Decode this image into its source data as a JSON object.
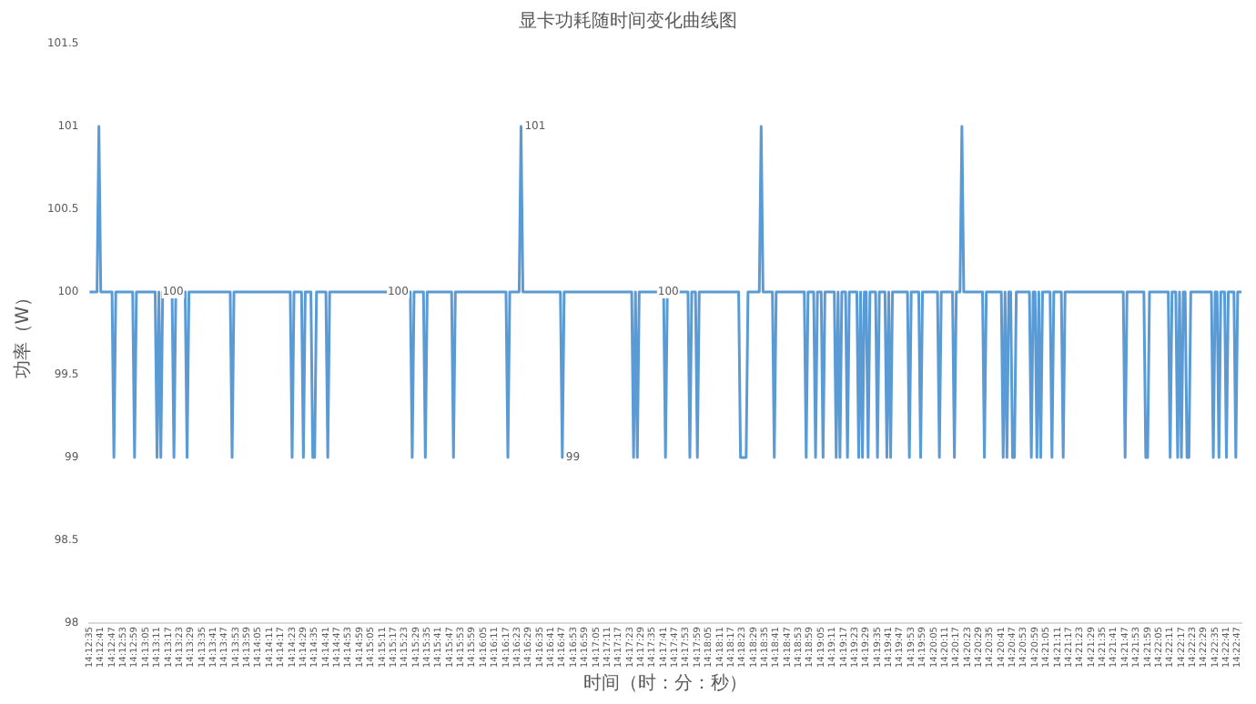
{
  "chart_data": {
    "type": "line",
    "title": "显卡功耗随时间变化曲线图",
    "xlabel": "时间（时：分：秒）",
    "ylabel": "功率（W）",
    "categories": [
      "14:12:35",
      null,
      null,
      null,
      null,
      null,
      "14:12:41",
      null,
      null,
      null,
      null,
      null,
      "14:12:47",
      null,
      null,
      null,
      null,
      null,
      "14:12:53",
      null,
      null,
      null,
      null,
      null,
      "14:12:59",
      null,
      null,
      null,
      null,
      null,
      "14:13:05",
      null,
      null,
      null,
      null,
      null,
      "14:13:11",
      null,
      null,
      null,
      null,
      null,
      "14:13:17",
      null,
      null,
      null,
      null,
      null,
      "14:13:23",
      null,
      null,
      null,
      null,
      null,
      "14:13:29",
      null,
      null,
      null,
      null,
      null,
      "14:13:35",
      null,
      null,
      null,
      null,
      null,
      "14:13:41",
      null,
      null,
      null,
      null,
      null,
      "14:13:47",
      null,
      null,
      null,
      null,
      null,
      "14:13:53",
      null,
      null,
      null,
      null,
      null,
      "14:13:59",
      null,
      null,
      null,
      null,
      null,
      "14:14:05",
      null,
      null,
      null,
      null,
      null,
      "14:14:11",
      null,
      null,
      null,
      null,
      null,
      "14:14:17",
      null,
      null,
      null,
      null,
      null,
      "14:14:23",
      null,
      null,
      null,
      null,
      null,
      "14:14:29",
      null,
      null,
      null,
      null,
      null,
      "14:14:35",
      null,
      null,
      null,
      null,
      null,
      "14:14:41",
      null,
      null,
      null,
      null,
      null,
      "14:14:47",
      null,
      null,
      null,
      null,
      null,
      "14:14:53",
      null,
      null,
      null,
      null,
      null,
      "14:14:59",
      null,
      null,
      null,
      null,
      null,
      "14:15:05",
      null,
      null,
      null,
      null,
      null,
      "14:15:11",
      null,
      null,
      null,
      null,
      null,
      "14:15:17",
      null,
      null,
      null,
      null,
      null,
      "14:15:23",
      null,
      null,
      null,
      null,
      null,
      "14:15:29",
      null,
      null,
      null,
      null,
      null,
      "14:15:35",
      null,
      null,
      null,
      null,
      null,
      "14:15:41",
      null,
      null,
      null,
      null,
      null,
      "14:15:47",
      null,
      null,
      null,
      null,
      null,
      "14:15:53",
      null,
      null,
      null,
      null,
      null,
      "14:15:59",
      null,
      null,
      null,
      null,
      null,
      "14:16:05",
      null,
      null,
      null,
      null,
      null,
      "14:16:11",
      null,
      null,
      null,
      null,
      null,
      "14:16:17",
      null,
      null,
      null,
      null,
      null,
      "14:16:23",
      null,
      null,
      null,
      null,
      null,
      "14:16:29",
      null,
      null,
      null,
      null,
      null,
      "14:16:35",
      null,
      null,
      null,
      null,
      null,
      "14:16:41",
      null,
      null,
      null,
      null,
      null,
      "14:16:47",
      null,
      null,
      null,
      null,
      null,
      "14:16:53",
      null,
      null,
      null,
      null,
      null,
      "14:16:59",
      null,
      null,
      null,
      null,
      null,
      "14:17:05",
      null,
      null,
      null,
      null,
      null,
      "14:17:11",
      null,
      null,
      null,
      null,
      null,
      "14:17:17",
      null,
      null,
      null,
      null,
      null,
      "14:17:23",
      null,
      null,
      null,
      null,
      null,
      "14:17:29",
      null,
      null,
      null,
      null,
      null,
      "14:17:35",
      null,
      null,
      null,
      null,
      null,
      "14:17:41",
      null,
      null,
      null,
      null,
      null,
      "14:17:47",
      null,
      null,
      null,
      null,
      null,
      "14:17:53",
      null,
      null,
      null,
      null,
      null,
      "14:17:59",
      null,
      null,
      null,
      null,
      null,
      "14:18:05",
      null,
      null,
      null,
      null,
      null,
      "14:18:11",
      null,
      null,
      null,
      null,
      null,
      "14:18:17",
      null,
      null,
      null,
      null,
      null,
      "14:18:23",
      null,
      null,
      null,
      null,
      null,
      "14:18:29",
      null,
      null,
      null,
      null,
      null,
      "14:18:35",
      null,
      null,
      null,
      null,
      null,
      "14:18:41",
      null,
      null,
      null,
      null,
      null,
      "14:18:47",
      null,
      null,
      null,
      null,
      null,
      "14:18:53",
      null,
      null,
      null,
      null,
      null,
      "14:18:59",
      null,
      null,
      null,
      null,
      null,
      "14:19:05",
      null,
      null,
      null,
      null,
      null,
      "14:19:11",
      null,
      null,
      null,
      null,
      null,
      "14:19:17",
      null,
      null,
      null,
      null,
      null,
      "14:19:23",
      null,
      null,
      null,
      null,
      null,
      "14:19:29",
      null,
      null,
      null,
      null,
      null,
      "14:19:35",
      null,
      null,
      null,
      null,
      null,
      "14:19:41",
      null,
      null,
      null,
      null,
      null,
      "14:19:47",
      null,
      null,
      null,
      null,
      null,
      "14:19:53",
      null,
      null,
      null,
      null,
      null,
      "14:19:59",
      null,
      null,
      null,
      null,
      null,
      "14:20:05",
      null,
      null,
      null,
      null,
      null,
      "14:20:11",
      null,
      null,
      null,
      null,
      null,
      "14:20:17",
      null,
      null,
      null,
      null,
      null,
      "14:20:23",
      null,
      null,
      null,
      null,
      null,
      "14:20:29",
      null,
      null,
      null,
      null,
      null,
      "14:20:35",
      null,
      null,
      null,
      null,
      null,
      "14:20:41",
      null,
      null,
      null,
      null,
      null,
      "14:20:47",
      null,
      null,
      null,
      null,
      null,
      "14:20:53",
      null,
      null,
      null,
      null,
      null,
      "14:20:59",
      null,
      null,
      null,
      null,
      null,
      "14:21:05",
      null,
      null,
      null,
      null,
      null,
      "14:21:11",
      null,
      null,
      null,
      null,
      null,
      "14:21:17",
      null,
      null,
      null,
      null,
      null,
      "14:21:23",
      null,
      null,
      null,
      null,
      null,
      "14:21:29",
      null,
      null,
      null,
      null,
      null,
      "14:21:35",
      null,
      null,
      null,
      null,
      null,
      "14:21:41",
      null,
      null,
      null,
      null,
      null,
      "14:21:47",
      null,
      null,
      null,
      null,
      null,
      "14:21:53",
      null,
      null,
      null,
      null,
      null,
      "14:21:59",
      null,
      null,
      null,
      null,
      null,
      "14:22:05",
      null,
      null,
      null,
      null,
      null,
      "14:22:11",
      null,
      null,
      null,
      null,
      null,
      "14:22:17",
      null,
      null,
      null,
      null,
      null,
      "14:22:23",
      null,
      null,
      null,
      null,
      null,
      "14:22:29",
      null,
      null,
      null,
      null,
      null,
      "14:22:35",
      null,
      null,
      null,
      null,
      null,
      "14:22:41",
      null,
      null,
      null,
      null,
      null,
      "14:22:47",
      null,
      null
    ],
    "series": [
      {
        "color": "#5b9bd5",
        "values": [
          100,
          100,
          100,
          100,
          100,
          101,
          100,
          100,
          100,
          100,
          100,
          100,
          100,
          99,
          100,
          100,
          100,
          100,
          100,
          100,
          100,
          100,
          100,
          100,
          99,
          100,
          100,
          100,
          100,
          100,
          100,
          100,
          100,
          100,
          100,
          100,
          99,
          100,
          99,
          100,
          100,
          100,
          100,
          100,
          100,
          99,
          100,
          100,
          100,
          100,
          100,
          100,
          99,
          100,
          100,
          100,
          100,
          100,
          100,
          100,
          100,
          100,
          100,
          100,
          100,
          100,
          100,
          100,
          100,
          100,
          100,
          100,
          100,
          100,
          100,
          100,
          99,
          100,
          100,
          100,
          100,
          100,
          100,
          100,
          100,
          100,
          100,
          100,
          100,
          100,
          100,
          100,
          100,
          100,
          100,
          100,
          100,
          100,
          100,
          100,
          100,
          100,
          100,
          100,
          100,
          100,
          100,
          100,
          99,
          100,
          100,
          100,
          100,
          100,
          99,
          100,
          100,
          100,
          100,
          99,
          99,
          100,
          100,
          100,
          100,
          100,
          100,
          99,
          100,
          100,
          100,
          100,
          100,
          100,
          100,
          100,
          100,
          100,
          100,
          100,
          100,
          100,
          100,
          100,
          100,
          100,
          100,
          100,
          100,
          100,
          100,
          100,
          100,
          100,
          100,
          100,
          100,
          100,
          100,
          100,
          100,
          100,
          100,
          100,
          100,
          100,
          100,
          100,
          100,
          100,
          100,
          100,
          99,
          100,
          100,
          100,
          100,
          100,
          100,
          99,
          100,
          100,
          100,
          100,
          100,
          100,
          100,
          100,
          100,
          100,
          100,
          100,
          100,
          100,
          99,
          100,
          100,
          100,
          100,
          100,
          100,
          100,
          100,
          100,
          100,
          100,
          100,
          100,
          100,
          100,
          100,
          100,
          100,
          100,
          100,
          100,
          100,
          100,
          100,
          100,
          100,
          100,
          100,
          99,
          100,
          100,
          100,
          100,
          100,
          100,
          101,
          100,
          100,
          100,
          100,
          100,
          100,
          100,
          100,
          100,
          100,
          100,
          100,
          100,
          100,
          100,
          100,
          100,
          100,
          100,
          100,
          100,
          99,
          100,
          100,
          100,
          100,
          100,
          100,
          100,
          100,
          100,
          100,
          100,
          100,
          100,
          100,
          100,
          100,
          100,
          100,
          100,
          100,
          100,
          100,
          100,
          100,
          100,
          100,
          100,
          100,
          100,
          100,
          100,
          100,
          100,
          100,
          100,
          100,
          100,
          99,
          100,
          99,
          100,
          100,
          100,
          100,
          100,
          100,
          100,
          100,
          100,
          100,
          100,
          100,
          100,
          100,
          99,
          100,
          100,
          100,
          100,
          100,
          100,
          100,
          100,
          100,
          100,
          100,
          100,
          99,
          100,
          100,
          100,
          99,
          100,
          100,
          100,
          100,
          100,
          100,
          100,
          100,
          100,
          100,
          100,
          100,
          100,
          100,
          100,
          100,
          100,
          100,
          100,
          100,
          100,
          100,
          99,
          99,
          99,
          99,
          100,
          100,
          100,
          100,
          100,
          100,
          100,
          101,
          100,
          100,
          100,
          100,
          100,
          100,
          99,
          100,
          100,
          100,
          100,
          100,
          100,
          100,
          100,
          100,
          100,
          100,
          100,
          100,
          100,
          100,
          100,
          99,
          100,
          100,
          100,
          100,
          99,
          100,
          100,
          100,
          99,
          100,
          100,
          100,
          100,
          100,
          100,
          99,
          100,
          99,
          100,
          100,
          100,
          99,
          100,
          100,
          100,
          100,
          100,
          99,
          100,
          99,
          100,
          100,
          99,
          100,
          100,
          100,
          100,
          99,
          100,
          100,
          100,
          100,
          99,
          100,
          99,
          100,
          100,
          100,
          100,
          100,
          100,
          100,
          100,
          100,
          99,
          100,
          100,
          100,
          100,
          100,
          99,
          100,
          100,
          100,
          100,
          100,
          100,
          100,
          100,
          100,
          99,
          100,
          100,
          100,
          100,
          100,
          100,
          100,
          99,
          100,
          100,
          100,
          101,
          100,
          100,
          100,
          100,
          100,
          100,
          100,
          100,
          100,
          100,
          100,
          99,
          100,
          100,
          100,
          100,
          100,
          100,
          100,
          100,
          100,
          99,
          100,
          99,
          100,
          100,
          99,
          99,
          100,
          100,
          100,
          100,
          100,
          100,
          100,
          100,
          99,
          100,
          100,
          99,
          100,
          99,
          100,
          100,
          100,
          100,
          100,
          99,
          100,
          100,
          100,
          100,
          100,
          99,
          100,
          100,
          100,
          100,
          100,
          100,
          100,
          100,
          100,
          100,
          100,
          100,
          100,
          100,
          100,
          100,
          100,
          100,
          100,
          100,
          100,
          100,
          100,
          100,
          100,
          100,
          100,
          100,
          100,
          100,
          100,
          100,
          99,
          100,
          100,
          100,
          100,
          100,
          100,
          100,
          100,
          100,
          100,
          99,
          99,
          100,
          100,
          100,
          100,
          100,
          100,
          100,
          100,
          100,
          100,
          100,
          99,
          100,
          100,
          100,
          99,
          100,
          99,
          100,
          100,
          99,
          99,
          100,
          100,
          100,
          100,
          100,
          100,
          100,
          100,
          100,
          100,
          100,
          100,
          99,
          100,
          100,
          99,
          100,
          100,
          100,
          99,
          100,
          100,
          100,
          100,
          99,
          100,
          100,
          100
        ],
        "value_labels": [
          null,
          null,
          null,
          null,
          null,
          null,
          null,
          null,
          null,
          null,
          null,
          null,
          null,
          null,
          null,
          null,
          null,
          null,
          null,
          null,
          null,
          null,
          null,
          null,
          null,
          null,
          null,
          null,
          null,
          null,
          null,
          null,
          null,
          null,
          null,
          null,
          null,
          "100",
          null,
          null,
          null,
          null,
          null,
          null,
          null,
          null,
          null,
          null,
          null,
          null,
          null,
          null,
          null,
          null,
          null,
          null,
          null,
          null,
          null,
          null,
          null,
          null,
          null,
          null,
          null,
          null,
          null,
          null,
          null,
          null,
          null,
          null,
          null,
          null,
          null,
          null,
          null,
          null,
          null,
          null,
          null,
          null,
          null,
          null,
          null,
          null,
          null,
          null,
          null,
          null,
          null,
          null,
          null,
          null,
          null,
          null,
          null,
          null,
          null,
          null,
          null,
          null,
          null,
          null,
          null,
          null,
          null,
          null,
          null,
          null,
          null,
          null,
          null,
          null,
          null,
          null,
          null,
          null,
          null,
          null,
          null,
          null,
          null,
          null,
          null,
          null,
          null,
          null,
          null,
          null,
          null,
          null,
          null,
          null,
          null,
          null,
          null,
          null,
          null,
          null,
          null,
          null,
          null,
          null,
          null,
          null,
          null,
          null,
          null,
          null,
          null,
          null,
          null,
          null,
          null,
          null,
          null,
          "100",
          null,
          null,
          null,
          null,
          null,
          null,
          null,
          null,
          null,
          null,
          null,
          null,
          null,
          null,
          null,
          null,
          null,
          null,
          null,
          null,
          null,
          null,
          null,
          null,
          null,
          null,
          null,
          null,
          null,
          null,
          null,
          null,
          null,
          null,
          null,
          null,
          null,
          null,
          null,
          null,
          null,
          null,
          null,
          null,
          null,
          null,
          null,
          null,
          null,
          null,
          null,
          null,
          null,
          null,
          null,
          null,
          null,
          null,
          null,
          null,
          null,
          null,
          null,
          null,
          null,
          null,
          null,
          null,
          null,
          null,
          null,
          null,
          "101",
          null,
          null,
          null,
          null,
          null,
          null,
          null,
          null,
          null,
          null,
          null,
          null,
          null,
          null,
          null,
          null,
          null,
          null,
          null,
          null,
          null,
          "99",
          null,
          null,
          null,
          null,
          null,
          null,
          null,
          null,
          null,
          null,
          null,
          null,
          null,
          null,
          null,
          null,
          null,
          null,
          null,
          null,
          null,
          null,
          null,
          null,
          null,
          null,
          null,
          null,
          null,
          null,
          null,
          null,
          null,
          null,
          null,
          null,
          null,
          null,
          null,
          null,
          null,
          null,
          null,
          null,
          null,
          null,
          null,
          null,
          "100",
          null,
          null,
          null,
          null,
          null,
          null,
          null,
          null,
          null,
          null,
          null,
          null,
          null,
          null,
          null,
          null,
          null,
          null,
          null,
          null,
          null,
          null,
          null,
          null,
          null,
          null,
          null,
          null,
          null,
          null,
          null,
          null,
          null,
          null,
          null,
          null,
          null,
          null,
          null,
          null,
          null,
          null,
          null,
          null,
          null,
          null,
          null,
          null,
          null,
          null,
          null,
          null,
          null,
          null,
          null,
          null,
          null,
          null,
          null,
          null,
          null,
          null,
          null,
          null,
          null,
          null,
          null,
          null,
          null,
          null,
          null,
          null,
          null,
          null,
          null,
          null,
          null,
          null,
          null,
          null,
          null,
          null,
          null,
          null,
          null,
          null,
          null,
          null,
          null,
          null,
          null,
          null,
          null,
          null,
          null,
          null,
          null,
          null,
          null,
          null,
          null,
          null,
          null,
          null,
          null,
          null,
          null,
          null,
          null,
          null,
          null,
          null,
          null,
          null,
          null,
          null,
          null,
          null,
          null,
          null,
          null,
          null,
          null,
          null,
          null,
          null,
          null,
          null,
          null,
          null,
          null,
          null,
          null,
          null,
          null,
          null,
          null,
          null,
          null,
          null,
          null,
          null,
          null,
          null,
          null,
          null,
          null,
          null,
          null,
          null,
          null,
          null,
          null,
          null,
          null,
          null,
          null,
          null,
          null,
          null,
          null,
          null,
          null,
          null,
          null,
          null,
          null,
          null,
          null,
          null,
          null,
          null,
          null,
          null,
          null,
          null,
          null,
          null,
          null,
          null,
          null,
          null,
          null,
          null,
          null,
          null,
          null,
          null,
          null,
          null,
          null,
          null,
          null,
          null,
          null,
          null,
          null,
          null,
          null,
          null,
          null,
          null,
          null,
          null,
          null,
          null,
          null,
          null,
          null,
          null,
          null,
          null,
          null,
          null,
          null,
          null,
          null,
          null,
          null,
          null,
          null,
          null,
          null,
          null,
          null,
          null,
          null,
          null,
          null,
          null,
          null,
          null,
          null,
          null,
          null,
          null,
          null,
          null,
          null,
          null,
          null,
          null,
          null,
          null,
          null,
          null,
          null,
          null,
          null,
          null,
          null,
          null,
          null,
          null,
          null,
          null,
          null,
          null,
          null,
          null,
          null,
          null,
          null,
          null,
          null,
          null,
          null,
          null,
          null,
          null,
          null,
          null,
          null,
          null,
          null,
          null,
          null,
          null,
          null,
          null,
          null,
          null,
          null,
          null,
          null,
          null,
          null,
          null,
          null,
          null,
          null,
          null,
          null,
          null,
          null,
          null,
          null,
          null,
          null,
          null,
          null,
          null,
          null,
          null,
          null,
          null,
          null,
          null,
          null,
          null,
          null,
          null,
          null
        ]
      }
    ],
    "ylim": [
      98,
      101.5
    ],
    "yticks": [
      98,
      98.5,
      99,
      99.5,
      100,
      100.5,
      101,
      101.5
    ],
    "grid": false,
    "legend": false,
    "marker": "none",
    "line_style": "solid"
  }
}
